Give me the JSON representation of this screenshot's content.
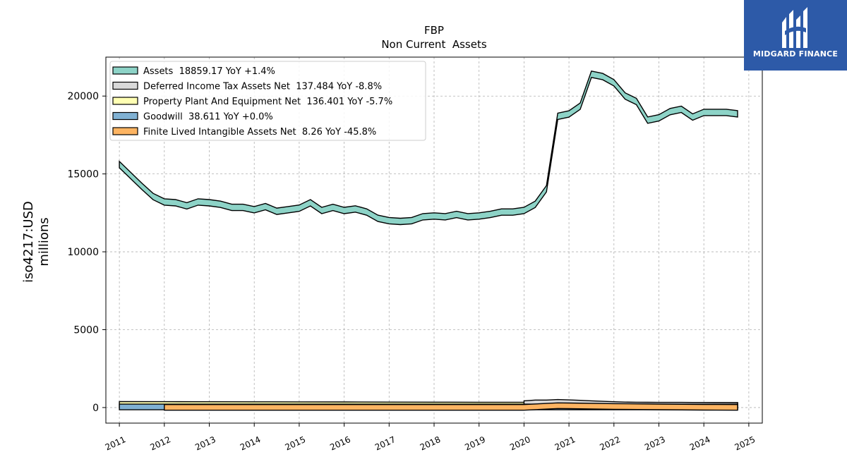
{
  "brand": {
    "name": "MIDGARD FINANCE"
  },
  "chart_data": {
    "type": "area",
    "title": "FBP",
    "subtitle": "Non Current  Assets",
    "ylabel": "iso4217:USD",
    "ylabel2": "millions",
    "xlim": [
      2010.7,
      2025.3
    ],
    "ylim": [
      -1000,
      22500
    ],
    "yticks": [
      0,
      5000,
      10000,
      15000,
      20000
    ],
    "ytick_labels": [
      "0",
      "5000",
      "10000",
      "15000",
      "20000"
    ],
    "xticks": [
      2011,
      2012,
      2013,
      2014,
      2015,
      2016,
      2017,
      2018,
      2019,
      2020,
      2021,
      2022,
      2023,
      2024,
      2025
    ],
    "xtick_labels": [
      "2011",
      "2012",
      "2013",
      "2014",
      "2015",
      "2016",
      "2017",
      "2018",
      "2019",
      "2020",
      "2021",
      "2022",
      "2023",
      "2024",
      "2025"
    ],
    "grid": true,
    "legend_position": "top-left",
    "series": [
      {
        "name": "Assets  18859.17 YoY +1.4%",
        "color": "#8dd3c7",
        "x": [
          2011.0,
          2011.25,
          2011.5,
          2011.75,
          2012.0,
          2012.25,
          2012.5,
          2012.75,
          2013.0,
          2013.25,
          2013.5,
          2013.75,
          2014.0,
          2014.25,
          2014.5,
          2014.75,
          2015.0,
          2015.25,
          2015.5,
          2015.75,
          2016.0,
          2016.25,
          2016.5,
          2016.75,
          2017.0,
          2017.25,
          2017.5,
          2017.75,
          2018.0,
          2018.25,
          2018.5,
          2018.75,
          2019.0,
          2019.25,
          2019.5,
          2019.75,
          2020.0,
          2020.25,
          2020.5,
          2020.75,
          2021.0,
          2021.25,
          2021.5,
          2021.75,
          2022.0,
          2022.25,
          2022.5,
          2022.75,
          2023.0,
          2023.25,
          2023.5,
          2023.75,
          2024.0,
          2024.25,
          2024.5,
          2024.75
        ],
        "y": [
          15600,
          14900,
          14200,
          13550,
          13200,
          13150,
          12950,
          13200,
          13150,
          13050,
          12850,
          12850,
          12700,
          12900,
          12600,
          12700,
          12800,
          13150,
          12650,
          12850,
          12650,
          12750,
          12550,
          12150,
          12000,
          11950,
          12000,
          12250,
          12300,
          12250,
          12400,
          12250,
          12300,
          12400,
          12550,
          12550,
          12650,
          13050,
          14050,
          18700,
          18850,
          19350,
          21400,
          21250,
          20850,
          20000,
          19650,
          18450,
          18600,
          19000,
          19150,
          18650,
          18950,
          18950,
          18950,
          18859.17
        ]
      },
      {
        "name": "Deferred Income Tax Assets Net  137.484 YoY -8.8%",
        "color": "#d9d9d9",
        "x": [
          2020.0,
          2020.25,
          2020.5,
          2020.75,
          2021.0,
          2021.25,
          2021.5,
          2021.75,
          2022.0,
          2022.25,
          2022.5,
          2022.75,
          2023.0,
          2023.25,
          2023.5,
          2023.75,
          2024.0,
          2024.25,
          2024.5,
          2024.75
        ],
        "y": [
          250,
          300,
          300,
          330,
          310,
          280,
          250,
          220,
          190,
          170,
          160,
          155,
          150,
          150,
          148,
          146,
          145,
          142,
          140,
          137.484
        ]
      },
      {
        "name": "Property Plant And Equipment Net  136.401 YoY -5.7%",
        "color": "#ffffb3",
        "x": [
          2011.0,
          2012.0,
          2013.0,
          2014.0,
          2015.0,
          2016.0,
          2017.0,
          2018.0,
          2019.0,
          2020.0,
          2021.0,
          2022.0,
          2023.0,
          2024.0,
          2024.75
        ],
        "y": [
          200,
          195,
          190,
          185,
          180,
          175,
          170,
          165,
          160,
          158,
          155,
          150,
          145,
          140,
          136.401
        ]
      },
      {
        "name": "Goodwill  38.611 YoY +0.0%",
        "color": "#80b1d3",
        "x": [
          2011.0,
          2024.75
        ],
        "y": [
          38.611,
          38.611
        ]
      },
      {
        "name": "Finite Lived Intangible Assets Net  8.26 YoY -45.8%",
        "color": "#fdb462",
        "x": [
          2012.0,
          2013.0,
          2014.0,
          2015.0,
          2016.0,
          2017.0,
          2018.0,
          2019.0,
          2020.0,
          2020.75,
          2021.0,
          2022.0,
          2023.0,
          2024.0,
          2024.75
        ],
        "y": [
          8,
          8,
          8,
          8,
          8,
          8,
          8,
          8,
          8,
          120,
          110,
          70,
          40,
          20,
          8.26
        ]
      }
    ]
  }
}
